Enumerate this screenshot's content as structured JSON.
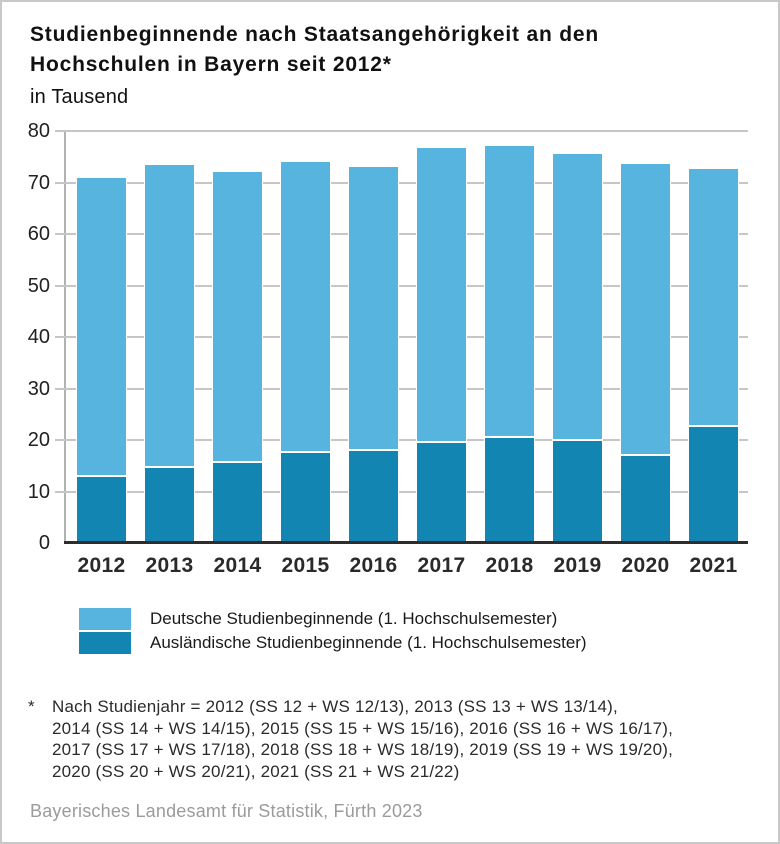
{
  "title": {
    "line1": "Studienbeginnende nach Staatsangehörigkeit an den",
    "line2": "Hochschulen in Bayern seit 2012*",
    "subtitle": "in Tausend"
  },
  "chart_data": {
    "type": "bar",
    "stacked": true,
    "title": "Studienbeginnende nach Staatsangehörigkeit an den Hochschulen in Bayern seit 2012*",
    "ylabel": "in Tausend",
    "categories": [
      "2012",
      "2013",
      "2014",
      "2015",
      "2016",
      "2017",
      "2018",
      "2019",
      "2020",
      "2021"
    ],
    "series": [
      {
        "name": "Deutsche Studienbeginnende (1. Hochschulsemester)",
        "color": "#57B4DF",
        "stack_position": "top",
        "values": [
          58.1,
          58.7,
          56.6,
          56.5,
          55.2,
          57.3,
          56.7,
          55.7,
          56.7,
          50.2
        ]
      },
      {
        "name": "Ausländische Studienbeginnende (1. Hochschulsemester)",
        "color": "#1285B2",
        "stack_position": "bottom",
        "values": [
          13.0,
          14.8,
          15.7,
          17.6,
          18.1,
          19.6,
          20.6,
          20.1,
          17.1,
          22.7
        ]
      }
    ],
    "totals": [
      71.1,
      73.5,
      72.3,
      74.1,
      73.3,
      76.9,
      77.3,
      75.8,
      73.8,
      72.9
    ],
    "ylim": [
      0,
      80
    ],
    "yticks": [
      0,
      10,
      20,
      30,
      40,
      50,
      60,
      70,
      80
    ],
    "grid": true,
    "legend_position": "bottom"
  },
  "footnote": {
    "marker": "*",
    "lines": [
      "Nach Studienjahr = 2012 (SS 12 + WS 12/13), 2013 (SS 13 + WS 13/14),",
      "2014 (SS 14 + WS 14/15), 2015 (SS 15 + WS 15/16), 2016 (SS 16 + WS 16/17),",
      "2017 (SS 17 + WS 17/18), 2018 (SS 18 + WS 18/19), 2019 (SS 19 + WS 19/20),",
      "2020 (SS 20 + WS 20/21), 2021 (SS 21 + WS 21/22)"
    ]
  },
  "source": "Bayerisches Landesamt für Statistik, Fürth 2023",
  "colors": {
    "light_blue": "#57B4DF",
    "dark_blue": "#1285B2",
    "gridline": "#c6c6c6",
    "baseline": "#2d2d2d",
    "source_text": "#9b9b9b",
    "frame_border": "#c8c8c8"
  }
}
